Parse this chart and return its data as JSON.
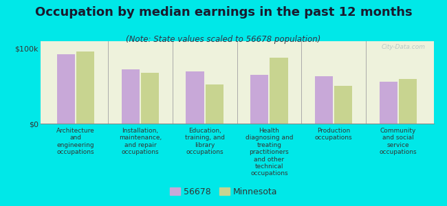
{
  "title": "Occupation by median earnings in the past 12 months",
  "subtitle": "(Note: State values scaled to 56678 population)",
  "background_color": "#00e8e8",
  "plot_bg_color": "#eef2dc",
  "categories": [
    "Architecture\nand\nengineering\noccupations",
    "Installation,\nmaintenance,\nand repair\noccupations",
    "Education,\ntraining, and\nlibrary\noccupations",
    "Health\ndiagnosing and\ntreating\npractitioners\nand other\ntechnical\noccupations",
    "Production\noccupations",
    "Community\nand social\nservice\noccupations"
  ],
  "city_values": [
    93000,
    72000,
    70000,
    65000,
    63000,
    56000
  ],
  "state_values": [
    96000,
    68000,
    52000,
    88000,
    50000,
    60000
  ],
  "city_color": "#c8a8d8",
  "state_color": "#c8d490",
  "ylim": [
    0,
    110000
  ],
  "yticks": [
    0,
    100000
  ],
  "ytick_labels": [
    "$0",
    "$100k"
  ],
  "city_label": "56678",
  "state_label": "Minnesota",
  "title_fontsize": 13,
  "subtitle_fontsize": 8.5,
  "tick_label_fontsize": 8,
  "cat_label_fontsize": 6.5,
  "legend_fontsize": 9,
  "watermark": "City-Data.com"
}
